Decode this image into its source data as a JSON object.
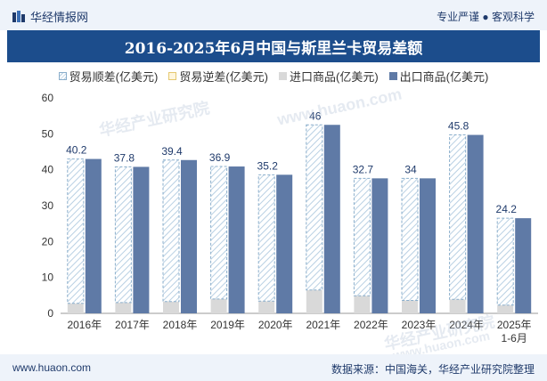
{
  "header": {
    "brand": "华经情报网",
    "tagline": "专业严谨 ● 客观科学"
  },
  "footer": {
    "site": "www.huaon.com",
    "source": "数据来源：中国海关，华经产业研究院整理"
  },
  "watermarks": [
    "华经产业研究院",
    "www.huaon.com",
    "华经产业研究院",
    "www.huaon.com"
  ],
  "colors": {
    "export": "#5f7aa6",
    "import": "#d9d9d9",
    "surplus_stroke": "#8aaecb",
    "surplus_hatch": "#b9d0e3",
    "title_bg": "#1c4d8c"
  },
  "chart_data": {
    "type": "bar",
    "title": "2016-2025年6月中国与斯里兰卡贸易差额",
    "categories": [
      "2016年",
      "2017年",
      "2018年",
      "2019年",
      "2020年",
      "2021年",
      "2022年",
      "2023年",
      "2024年",
      "2025年\n1-6月"
    ],
    "series": [
      {
        "name": "贸易顺差(亿美元)",
        "values": [
          40.2,
          37.8,
          39.4,
          36.9,
          35.2,
          46,
          32.7,
          34,
          45.8,
          24.2
        ],
        "style": "hatched"
      },
      {
        "name": "贸易逆差(亿美元)",
        "values": [
          0,
          0,
          0,
          0,
          0,
          0,
          0,
          0,
          0,
          0
        ],
        "style": "outline-yellow"
      },
      {
        "name": "进口商品(亿美元)",
        "values": [
          2.8,
          3.0,
          3.3,
          4.0,
          3.4,
          6.5,
          4.9,
          3.6,
          3.9,
          2.3
        ],
        "style": "solid-gray"
      },
      {
        "name": "出口商品(亿美元)",
        "values": [
          43.0,
          40.8,
          42.7,
          40.9,
          38.6,
          52.5,
          37.6,
          37.6,
          49.7,
          26.5
        ],
        "style": "solid-blue"
      }
    ],
    "ylim": [
      0,
      60
    ],
    "yticks": [
      0,
      10,
      20,
      30,
      40,
      50,
      60
    ],
    "data_labels": [
      "40.2",
      "37.8",
      "39.4",
      "36.9",
      "35.2",
      "46",
      "32.7",
      "34",
      "45.8",
      "24.2"
    ],
    "legend": "top",
    "grid": false
  }
}
